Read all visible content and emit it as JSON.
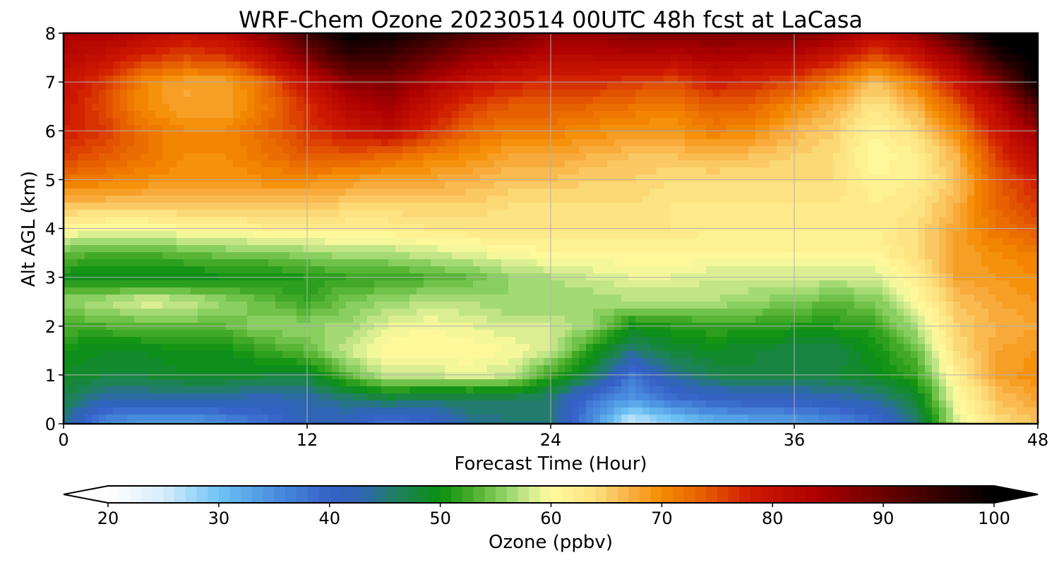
{
  "chart_data": {
    "type": "heatmap",
    "title": "WRF-Chem Ozone  20230514 00UTC 48h fcst at LaCasa",
    "xlabel": "Forecast Time (Hour)",
    "ylabel": "Alt AGL (km)",
    "xlim": [
      0,
      48
    ],
    "ylim": [
      0,
      8
    ],
    "xticks": [
      0,
      12,
      24,
      36,
      48
    ],
    "yticks": [
      0,
      1,
      2,
      3,
      4,
      5,
      6,
      7,
      8
    ],
    "grid": true,
    "colorbar": {
      "label": "Ozone  (ppbv)",
      "min": 20,
      "max": 100,
      "ticks": [
        20,
        30,
        40,
        50,
        60,
        70,
        80,
        90,
        100
      ],
      "extend": "both",
      "levels_step": 1,
      "colormap": [
        [
          20,
          "#ffffff"
        ],
        [
          25,
          "#d6ecfb"
        ],
        [
          30,
          "#6ec3f5"
        ],
        [
          35,
          "#4a8fdf"
        ],
        [
          40,
          "#3560c8"
        ],
        [
          43,
          "#2e66b0"
        ],
        [
          46,
          "#1f8060"
        ],
        [
          50,
          "#0b9010"
        ],
        [
          53,
          "#4cae2c"
        ],
        [
          56,
          "#95d56a"
        ],
        [
          58,
          "#cfe98e"
        ],
        [
          60,
          "#fffb9e"
        ],
        [
          64,
          "#fde07e"
        ],
        [
          67,
          "#f9b247"
        ],
        [
          70,
          "#f58a00"
        ],
        [
          74,
          "#e55a00"
        ],
        [
          78,
          "#cf1a00"
        ],
        [
          84,
          "#ad0000"
        ],
        [
          90,
          "#6a0000"
        ],
        [
          96,
          "#2a0000"
        ],
        [
          100,
          "#000000"
        ]
      ]
    },
    "x": [
      0,
      2,
      4,
      6,
      8,
      10,
      12,
      14,
      16,
      18,
      20,
      22,
      24,
      26,
      28,
      30,
      32,
      34,
      36,
      38,
      40,
      42,
      44,
      46,
      48
    ],
    "y": [
      0,
      0.5,
      1,
      1.5,
      2,
      2.5,
      3,
      3.5,
      4,
      4.5,
      5,
      5.5,
      6,
      6.5,
      7,
      7.5,
      8
    ],
    "z": [
      [
        44,
        35,
        33,
        33,
        35,
        38,
        42,
        41,
        37,
        39,
        44,
        45,
        45,
        35,
        24,
        28,
        31,
        32,
        33,
        35,
        38,
        45,
        58,
        64,
        66
      ],
      [
        47,
        43,
        43,
        43,
        43,
        42,
        43,
        45,
        47,
        46,
        46,
        46,
        45,
        38,
        34,
        38,
        40,
        41,
        41,
        42,
        44,
        48,
        60,
        66,
        68
      ],
      [
        49,
        48,
        48,
        49,
        49,
        48,
        48,
        54,
        58,
        58,
        59,
        58,
        52,
        47,
        38,
        44,
        47,
        48,
        48,
        48,
        49,
        52,
        62,
        68,
        70
      ],
      [
        50,
        49,
        49,
        50,
        50,
        52,
        54,
        58,
        61,
        61,
        61,
        60,
        58,
        51,
        45,
        48,
        49,
        48,
        47,
        47,
        50,
        54,
        64,
        68,
        69
      ],
      [
        53,
        53,
        54,
        54,
        54,
        56,
        56,
        56,
        59,
        60,
        59,
        58,
        58,
        56,
        50,
        51,
        52,
        52,
        51,
        51,
        52,
        57,
        65,
        67,
        68
      ],
      [
        56,
        57,
        59,
        58,
        56,
        54,
        52,
        55,
        56,
        57,
        57,
        56,
        56,
        56,
        57,
        57,
        57,
        56,
        55,
        54,
        55,
        60,
        66,
        68,
        69
      ],
      [
        50,
        49,
        49,
        49,
        50,
        50,
        51,
        52,
        52,
        53,
        54,
        56,
        57,
        58,
        59,
        59,
        58,
        58,
        58,
        58,
        58,
        62,
        68,
        69,
        70
      ],
      [
        54,
        53,
        53,
        54,
        55,
        55,
        56,
        57,
        57,
        58,
        59,
        60,
        61,
        61,
        61,
        61,
        61,
        61,
        61,
        61,
        61,
        64,
        68,
        70,
        71
      ],
      [
        61,
        60,
        60,
        61,
        61,
        62,
        62,
        62,
        62,
        63,
        63,
        63,
        63,
        63,
        63,
        63,
        62,
        62,
        62,
        62,
        62,
        64,
        68,
        72,
        74
      ],
      [
        66,
        66,
        66,
        66,
        66,
        66,
        66,
        65,
        65,
        65,
        65,
        64,
        64,
        64,
        64,
        63,
        63,
        63,
        63,
        63,
        62,
        63,
        67,
        73,
        76
      ],
      [
        72,
        71,
        70,
        69,
        69,
        70,
        70,
        69,
        68,
        68,
        67,
        66,
        66,
        65,
        65,
        64,
        64,
        64,
        64,
        64,
        61,
        62,
        66,
        74,
        78
      ],
      [
        76,
        74,
        72,
        70,
        70,
        72,
        74,
        74,
        73,
        71,
        70,
        68,
        68,
        67,
        66,
        66,
        67,
        66,
        65,
        64,
        60,
        62,
        67,
        76,
        82
      ],
      [
        78,
        76,
        72,
        70,
        70,
        73,
        76,
        79,
        81,
        77,
        73,
        71,
        71,
        70,
        69,
        69,
        71,
        70,
        67,
        65,
        61,
        64,
        70,
        79,
        86
      ],
      [
        79,
        75,
        70,
        68,
        68,
        72,
        77,
        82,
        85,
        80,
        76,
        74,
        74,
        73,
        72,
        71,
        74,
        73,
        70,
        67,
        63,
        67,
        74,
        82,
        92
      ],
      [
        80,
        76,
        70,
        68,
        68,
        73,
        80,
        87,
        88,
        84,
        80,
        78,
        77,
        77,
        76,
        75,
        78,
        77,
        75,
        71,
        66,
        71,
        79,
        88,
        100
      ],
      [
        82,
        80,
        77,
        75,
        76,
        81,
        88,
        95,
        94,
        90,
        86,
        84,
        82,
        82,
        83,
        82,
        84,
        83,
        82,
        79,
        74,
        79,
        86,
        96,
        101
      ],
      [
        84,
        84,
        82,
        80,
        82,
        87,
        94,
        100,
        99,
        96,
        92,
        90,
        86,
        86,
        88,
        88,
        88,
        88,
        88,
        86,
        82,
        86,
        94,
        102,
        104
      ]
    ]
  }
}
